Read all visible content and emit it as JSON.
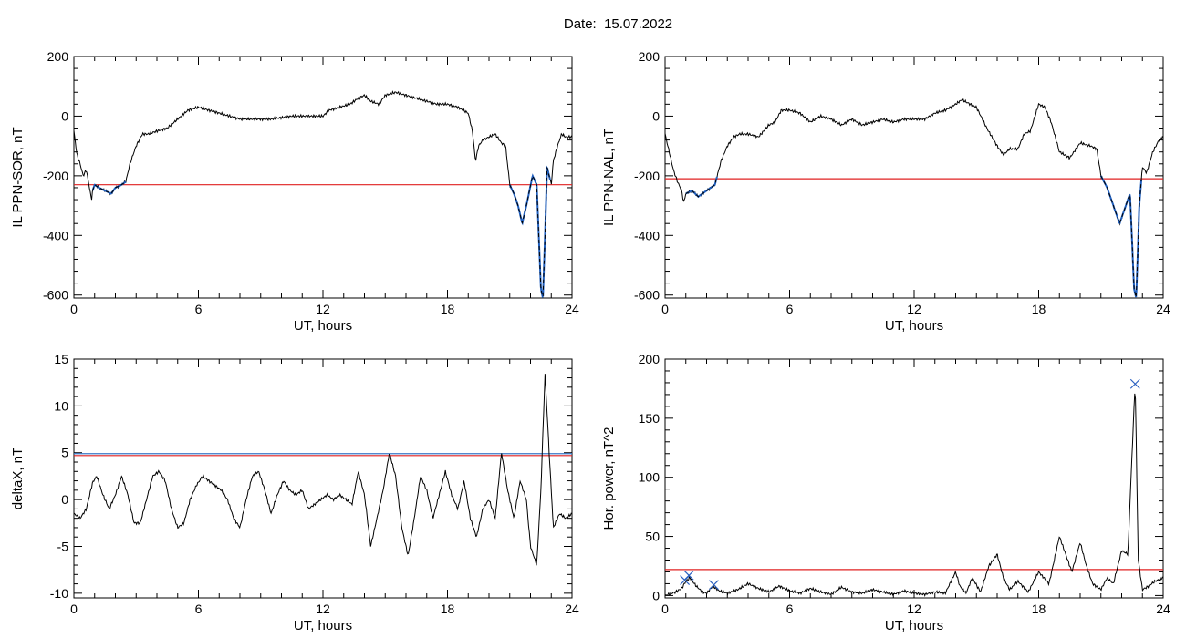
{
  "header": {
    "date_label": "Date:",
    "date_value": "15.07.2022"
  },
  "colors": {
    "trace": "#000000",
    "highlight": "#1f5fbf",
    "threshold_red": "#e02020",
    "threshold_blue": "#3a78c8",
    "marker_blue": "#2a60c0",
    "marker_green": "#30b030",
    "marker_red": "#d03030"
  },
  "chart_data": [
    {
      "id": "il-sor",
      "type": "line",
      "ylabel": "IL PPN-SOR, nT",
      "xlabel": "UT, hours",
      "xlim": [
        0,
        24
      ],
      "ylim": [
        -610,
        200
      ],
      "xticks": [
        0,
        6,
        12,
        18,
        24
      ],
      "yticks": [
        200,
        0,
        -200,
        -400,
        -600
      ],
      "threshold": -230,
      "series": [
        {
          "x": [
            0,
            0.15,
            0.3,
            0.45,
            0.6,
            0.75,
            0.85,
            0.9,
            1.0,
            1.2,
            1.5,
            1.8,
            2.0,
            2.3,
            2.5,
            2.7,
            3.0,
            3.3,
            3.6,
            4.0,
            4.5,
            5.0,
            5.5,
            6.0,
            6.5,
            7.0,
            7.5,
            8.0,
            8.5,
            9.0,
            9.5,
            10.0,
            10.5,
            11.0,
            11.5,
            12.0,
            12.3,
            12.8,
            13.3,
            13.7,
            14.0,
            14.3,
            14.7,
            15.0,
            15.5,
            16.0,
            16.5,
            17.0,
            17.5,
            18.0,
            18.5,
            19.0,
            19.2,
            19.35,
            19.5,
            19.7,
            20.0,
            20.3,
            20.6,
            20.8,
            21.0,
            21.2,
            21.4,
            21.6,
            21.8,
            21.95,
            22.1,
            22.3,
            22.5,
            22.6,
            22.7,
            22.8,
            22.9,
            23.0,
            23.1,
            23.3,
            23.5,
            23.7,
            24.0
          ],
          "y": [
            -50,
            -130,
            -160,
            -200,
            -180,
            -240,
            -280,
            -250,
            -230,
            -240,
            -250,
            -260,
            -240,
            -230,
            -220,
            -160,
            -100,
            -60,
            -60,
            -50,
            -40,
            -10,
            20,
            30,
            20,
            10,
            0,
            -10,
            -10,
            -10,
            -10,
            -5,
            0,
            0,
            0,
            0,
            20,
            30,
            40,
            60,
            70,
            50,
            40,
            70,
            80,
            70,
            60,
            50,
            40,
            40,
            30,
            10,
            -50,
            -150,
            -100,
            -80,
            -70,
            -60,
            -90,
            -100,
            -230,
            -260,
            -300,
            -360,
            -300,
            -250,
            -200,
            -230,
            -580,
            -610,
            -400,
            -170,
            -200,
            -230,
            -150,
            -100,
            -60,
            -70,
            -70
          ]
        }
      ],
      "highlight_segments": [
        [
          0.9,
          2.5
        ],
        [
          21.0,
          22.95
        ]
      ]
    },
    {
      "id": "il-nal",
      "type": "line",
      "ylabel": "IL PPN-NAL, nT",
      "xlabel": "UT, hours",
      "xlim": [
        0,
        24
      ],
      "ylim": [
        -610,
        200
      ],
      "xticks": [
        0,
        6,
        12,
        18,
        24
      ],
      "yticks": [
        200,
        0,
        -200,
        -400,
        -600
      ],
      "threshold": -210,
      "series": [
        {
          "x": [
            0,
            0.2,
            0.4,
            0.6,
            0.8,
            0.9,
            1.0,
            1.3,
            1.6,
            2.0,
            2.4,
            2.7,
            3.0,
            3.3,
            3.6,
            4.0,
            4.5,
            5.0,
            5.3,
            5.6,
            6.0,
            6.5,
            7.0,
            7.5,
            8.0,
            8.5,
            9.0,
            9.5,
            10.0,
            10.5,
            11.0,
            11.5,
            12.0,
            12.5,
            13.0,
            13.5,
            14.0,
            14.3,
            14.7,
            15.0,
            15.5,
            16.0,
            16.3,
            16.6,
            17.0,
            17.3,
            17.6,
            18.0,
            18.3,
            18.6,
            19.0,
            19.5,
            20.0,
            20.5,
            20.8,
            21.0,
            21.3,
            21.6,
            21.9,
            22.1,
            22.4,
            22.6,
            22.7,
            22.85,
            23.0,
            23.2,
            23.5,
            23.8,
            24.0
          ],
          "y": [
            -60,
            -120,
            -180,
            -220,
            -250,
            -290,
            -260,
            -250,
            -270,
            -250,
            -230,
            -150,
            -100,
            -70,
            -60,
            -60,
            -70,
            -30,
            -20,
            20,
            20,
            10,
            -20,
            0,
            -10,
            -30,
            -10,
            -30,
            -20,
            -10,
            -20,
            -10,
            -10,
            -10,
            10,
            20,
            40,
            55,
            40,
            30,
            -40,
            -100,
            -130,
            -110,
            -110,
            -60,
            -50,
            40,
            30,
            -20,
            -120,
            -140,
            -90,
            -100,
            -110,
            -200,
            -240,
            -300,
            -360,
            -320,
            -260,
            -580,
            -610,
            -300,
            -170,
            -190,
            -120,
            -80,
            -70
          ]
        }
      ],
      "highlight_segments": [
        [
          1.0,
          2.5
        ],
        [
          21.0,
          22.95
        ]
      ]
    },
    {
      "id": "deltax",
      "type": "line",
      "ylabel": "deltaX, nT",
      "xlabel": "UT, hours",
      "xlim": [
        0,
        24
      ],
      "ylim": [
        -10.5,
        15
      ],
      "xticks": [
        0,
        6,
        12,
        18,
        24
      ],
      "yticks": [
        15,
        10,
        5,
        0,
        -5,
        -10
      ],
      "threshold_red": 4.7,
      "threshold_blue": 4.9,
      "series": [
        {
          "x": [
            0,
            0.3,
            0.6,
            0.9,
            1.1,
            1.4,
            1.7,
            2.0,
            2.3,
            2.6,
            2.9,
            3.2,
            3.5,
            3.8,
            4.1,
            4.4,
            4.7,
            5.0,
            5.3,
            5.6,
            5.9,
            6.2,
            6.5,
            6.8,
            7.1,
            7.4,
            7.7,
            8.0,
            8.3,
            8.6,
            8.9,
            9.2,
            9.5,
            9.8,
            10.1,
            10.4,
            10.7,
            11.0,
            11.3,
            11.6,
            11.9,
            12.2,
            12.5,
            12.8,
            13.1,
            13.4,
            13.7,
            14.0,
            14.3,
            14.6,
            14.9,
            15.2,
            15.5,
            15.8,
            16.1,
            16.4,
            16.7,
            17.0,
            17.3,
            17.6,
            17.9,
            18.2,
            18.5,
            18.8,
            19.1,
            19.4,
            19.7,
            20.0,
            20.3,
            20.6,
            20.9,
            21.2,
            21.5,
            21.8,
            22.0,
            22.3,
            22.5,
            22.7,
            22.9,
            23.1,
            23.4,
            23.7,
            24.0
          ],
          "y": [
            -1.5,
            -2,
            -1,
            1.8,
            2.5,
            0.5,
            -1,
            0.5,
            2.5,
            0.5,
            -2.5,
            -2.5,
            0,
            2.5,
            3,
            2,
            -1,
            -3,
            -2.5,
            0,
            1.5,
            2.5,
            2,
            1.5,
            1,
            0,
            -2,
            -3,
            0,
            2.5,
            3,
            1,
            -1.5,
            0.5,
            2,
            1,
            0.5,
            1,
            -1,
            -0.5,
            0,
            0.5,
            0,
            0.5,
            0,
            -0.5,
            3,
            0.5,
            -5,
            -2,
            1,
            5,
            2.5,
            -3,
            -6,
            -2,
            2.5,
            1,
            -2,
            0.5,
            3,
            0.5,
            -1,
            2,
            -2,
            -4,
            -1,
            0,
            -2,
            5,
            1,
            -2,
            2,
            0,
            -5,
            -7,
            1,
            13.5,
            5,
            -3,
            -1.5,
            -2,
            -1.5
          ]
        }
      ]
    },
    {
      "id": "hor-power",
      "type": "line",
      "ylabel": "Hor. power, nT^2",
      "xlabel": "UT, hours",
      "xlim": [
        0,
        24
      ],
      "ylim": [
        -2,
        200
      ],
      "xticks": [
        0,
        6,
        12,
        18,
        24
      ],
      "yticks": [
        200,
        150,
        100,
        50,
        0
      ],
      "threshold": 22,
      "series": [
        {
          "x": [
            0,
            0.5,
            0.8,
            1.0,
            1.2,
            1.5,
            1.8,
            2.0,
            2.3,
            2.6,
            3.0,
            3.5,
            4.0,
            4.5,
            5.0,
            5.5,
            6.0,
            6.5,
            7.0,
            7.5,
            8.0,
            8.5,
            9.0,
            9.5,
            10.0,
            10.5,
            11.0,
            11.5,
            12.0,
            12.5,
            13.0,
            13.5,
            14.0,
            14.2,
            14.5,
            14.8,
            15.2,
            15.6,
            16.0,
            16.3,
            16.6,
            17.0,
            17.5,
            18.0,
            18.5,
            19.0,
            19.3,
            19.6,
            20.0,
            20.3,
            20.6,
            21.0,
            21.3,
            21.6,
            22.0,
            22.3,
            22.5,
            22.65,
            22.8,
            23.0,
            23.3,
            23.6,
            24.0
          ],
          "y": [
            0,
            3,
            6,
            12,
            15,
            8,
            3,
            2,
            8,
            4,
            2,
            5,
            10,
            6,
            3,
            8,
            4,
            2,
            6,
            3,
            1,
            7,
            3,
            2,
            5,
            3,
            1,
            4,
            2,
            1,
            3,
            2,
            20,
            8,
            2,
            15,
            3,
            25,
            35,
            15,
            5,
            12,
            3,
            20,
            10,
            50,
            35,
            20,
            45,
            25,
            10,
            5,
            15,
            10,
            38,
            35,
            120,
            180,
            30,
            5,
            8,
            12,
            15
          ]
        }
      ],
      "markers": [
        {
          "x": 0.95,
          "y": 13,
          "symbol": "x",
          "color": "blue"
        },
        {
          "x": 1.15,
          "y": 17,
          "symbol": "x",
          "color": "blue"
        },
        {
          "x": 2.35,
          "y": 9,
          "symbol": "x",
          "color": "blue"
        },
        {
          "x": 22.65,
          "y": 179,
          "symbol": "x",
          "color": "blue"
        }
      ]
    }
  ]
}
